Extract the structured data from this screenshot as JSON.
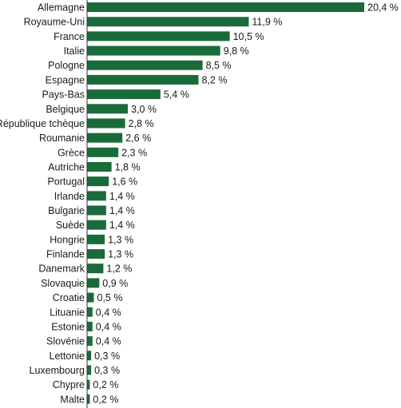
{
  "chart_data": {
    "type": "bar",
    "orientation": "horizontal",
    "categories": [
      "Allemagne",
      "Royaume-Uni",
      "France",
      "Italie",
      "Pologne",
      "Espagne",
      "Pays-Bas",
      "Belgique",
      "République tchèque",
      "Roumanie",
      "Grèce",
      "Autriche",
      "Portugal",
      "Irlande",
      "Bulgarie",
      "Suède",
      "Hongrie",
      "Finlande",
      "Danemark",
      "Slovaquie",
      "Croatie",
      "Lituanie",
      "Estonie",
      "Slovénie",
      "Lettonie",
      "Luxembourg",
      "Chypre",
      "Malte"
    ],
    "values": [
      20.4,
      11.9,
      10.5,
      9.8,
      8.5,
      8.2,
      5.4,
      3.0,
      2.8,
      2.6,
      2.3,
      1.8,
      1.6,
      1.4,
      1.4,
      1.4,
      1.3,
      1.3,
      1.2,
      0.9,
      0.5,
      0.4,
      0.4,
      0.4,
      0.3,
      0.3,
      0.2,
      0.2
    ],
    "value_labels": [
      "20,4 %",
      "11,9 %",
      "10,5 %",
      "9,8 %",
      "8,5 %",
      "8,2 %",
      "5,4 %",
      "3,0 %",
      "2,8 %",
      "2,6 %",
      "2,3 %",
      "1,8 %",
      "1,6 %",
      "1,4 %",
      "1,4 %",
      "1,4 %",
      "1,3 %",
      "1,3 %",
      "1,2 %",
      "0,9 %",
      "0,5 %",
      "0,4 %",
      "0,4 %",
      "0,4 %",
      "0,3 %",
      "0,3 %",
      "0,2 %",
      "0,2 %"
    ],
    "bar_color": "#1a6b3a",
    "xlim": [
      0,
      20.4
    ],
    "grid": false,
    "legend": "none"
  }
}
